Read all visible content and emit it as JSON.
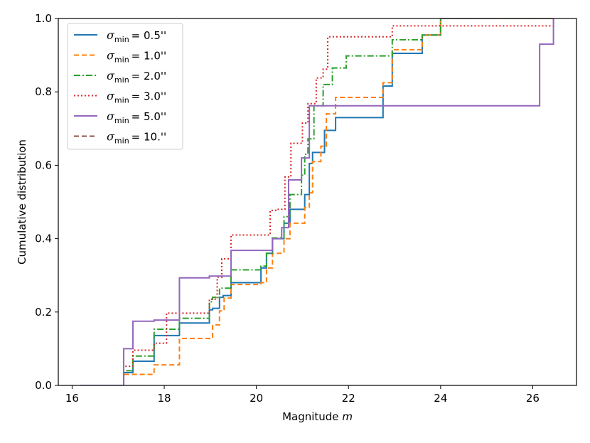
{
  "chart_data": {
    "type": "line",
    "step": true,
    "title": "",
    "xlabel": "Magnitude",
    "xlabel_var": "m",
    "ylabel": "Cumulative distribution",
    "xlim": [
      15.7,
      26.95
    ],
    "ylim": [
      0.0,
      1.0
    ],
    "xticks": [
      16,
      18,
      20,
      22,
      24,
      26
    ],
    "yticks": [
      0.0,
      0.2,
      0.4,
      0.6,
      0.8,
      1.0
    ],
    "xtick_labels": [
      "16",
      "18",
      "20",
      "22",
      "24",
      "26"
    ],
    "ytick_labels": [
      "0.0",
      "0.2",
      "0.4",
      "0.6",
      "0.8",
      "1.0"
    ],
    "grid": false,
    "legend_position": "top-left",
    "series": [
      {
        "name": "σmin = 0.5''",
        "sym": "σ",
        "sub": "min",
        "value": "0.5''",
        "color": "#1f77b4",
        "dash": "",
        "x": [
          16.18,
          17.12,
          17.32,
          17.78,
          18.33,
          18.98,
          19.05,
          19.2,
          19.28,
          19.45,
          20.1,
          20.22,
          20.35,
          20.6,
          20.73,
          21.05,
          21.15,
          21.22,
          21.48,
          21.72,
          22.75,
          22.95,
          23.6,
          24.0,
          26.45
        ],
        "y": [
          0.0,
          0.035,
          0.066,
          0.136,
          0.17,
          0.206,
          0.21,
          0.24,
          0.245,
          0.28,
          0.32,
          0.36,
          0.4,
          0.442,
          0.48,
          0.52,
          0.605,
          0.635,
          0.695,
          0.73,
          0.816,
          0.905,
          0.955,
          1.0,
          1.0
        ]
      },
      {
        "name": "σmin = 1.0''",
        "sym": "σ",
        "sub": "min",
        "value": "1.0''",
        "color": "#ff7f0e",
        "dash": "7,4",
        "x": [
          16.18,
          17.12,
          17.78,
          18.33,
          19.05,
          19.2,
          19.3,
          19.45,
          20.1,
          20.22,
          20.35,
          20.6,
          20.73,
          21.05,
          21.15,
          21.22,
          21.4,
          21.52,
          21.72,
          22.75,
          22.95,
          23.6,
          24.0,
          26.45
        ],
        "y": [
          0.0,
          0.03,
          0.056,
          0.128,
          0.165,
          0.203,
          0.238,
          0.275,
          0.28,
          0.32,
          0.36,
          0.4,
          0.442,
          0.485,
          0.525,
          0.61,
          0.652,
          0.74,
          0.785,
          0.825,
          0.915,
          0.955,
          1.0,
          1.0
        ]
      },
      {
        "name": "σmin = 2.0''",
        "sym": "σ",
        "sub": "min",
        "value": "2.0''",
        "color": "#2ca02c",
        "dash": "9,3,2,3",
        "x": [
          16.18,
          17.12,
          17.32,
          17.78,
          18.33,
          18.98,
          19.05,
          19.2,
          19.45,
          20.1,
          20.22,
          20.35,
          20.6,
          20.73,
          20.98,
          21.05,
          21.12,
          21.25,
          21.45,
          21.65,
          21.95,
          22.95,
          23.6,
          24.0,
          26.45
        ],
        "y": [
          0.0,
          0.04,
          0.08,
          0.153,
          0.183,
          0.228,
          0.24,
          0.265,
          0.315,
          0.325,
          0.36,
          0.402,
          0.46,
          0.52,
          0.573,
          0.63,
          0.672,
          0.762,
          0.82,
          0.865,
          0.898,
          0.942,
          0.955,
          1.0,
          1.0
        ]
      },
      {
        "name": "σmin = 3.0''",
        "sym": "σ",
        "sub": "min",
        "value": "3.0''",
        "color": "#d62728",
        "dash": "2,3",
        "x": [
          16.18,
          17.12,
          17.32,
          17.78,
          18.05,
          18.98,
          19.15,
          19.25,
          19.45,
          20.3,
          20.42,
          20.62,
          20.75,
          21.0,
          21.12,
          21.3,
          21.45,
          21.55,
          22.95,
          23.6,
          24.0,
          26.45
        ],
        "y": [
          0.0,
          0.052,
          0.096,
          0.115,
          0.197,
          0.235,
          0.295,
          0.345,
          0.41,
          0.477,
          0.48,
          0.568,
          0.66,
          0.715,
          0.768,
          0.838,
          0.862,
          0.95,
          0.98,
          0.98,
          0.98,
          1.0
        ]
      },
      {
        "name": "σmin = 5.0''",
        "sym": "σ",
        "sub": "min",
        "value": "5.0''",
        "color": "#9467bd",
        "dash": "",
        "x": [
          16.18,
          17.12,
          17.32,
          17.78,
          18.33,
          18.98,
          19.45,
          20.35,
          20.55,
          20.7,
          20.98,
          21.15,
          26.15,
          26.45
        ],
        "y": [
          0.0,
          0.1,
          0.175,
          0.178,
          0.293,
          0.298,
          0.368,
          0.4,
          0.43,
          0.56,
          0.62,
          0.762,
          0.93,
          1.0
        ]
      },
      {
        "name": "σmin = 10.''",
        "sym": "σ",
        "sub": "min",
        "value": "10.''",
        "color": "#8c564b",
        "dash": "7,4",
        "x": [
          24.0,
          26.45
        ],
        "y": [
          1.0,
          1.0
        ]
      }
    ]
  }
}
